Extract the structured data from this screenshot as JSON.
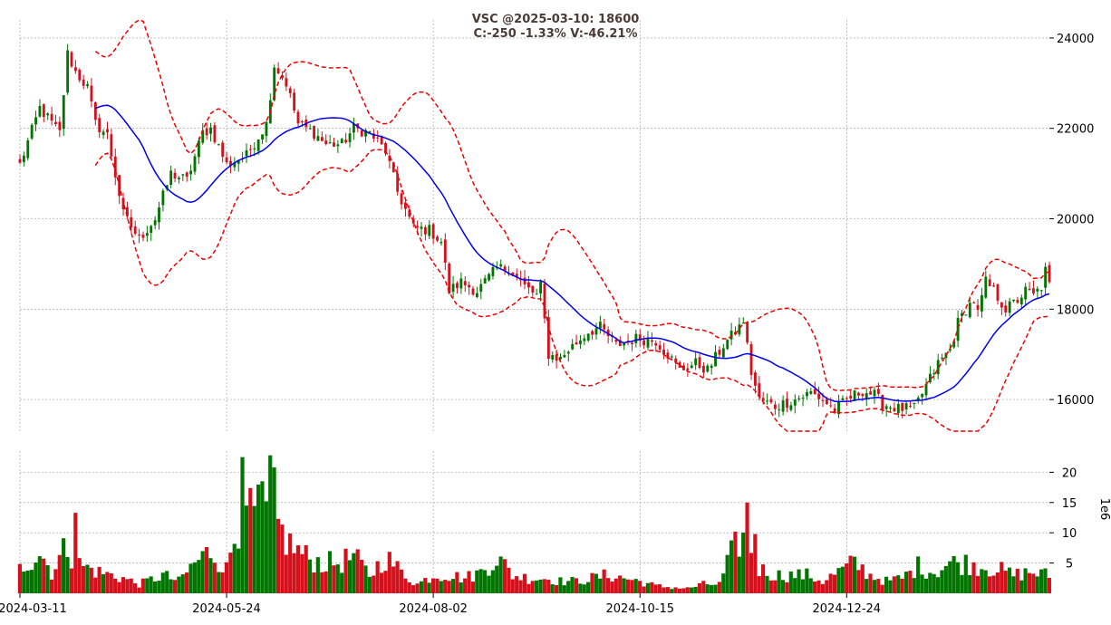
{
  "chart_data": {
    "type": "candlestick",
    "title": {
      "line1": "VSC @2025-03-10: 18600",
      "line2": "C:-250 -1.33% V:-46.21%"
    },
    "colors": {
      "up": "#007500",
      "down": "#d3101c",
      "ma": "#0000ee",
      "band": "#ee0000",
      "grid": "#9a9a9a"
    },
    "grid": true,
    "price_axis": {
      "ylim": [
        15300,
        24400
      ],
      "ticks": [
        16000,
        18000,
        20000,
        22000,
        24000
      ],
      "tick_labels": [
        "16000",
        "18000",
        "20000",
        "22000",
        "24000"
      ],
      "position": "right"
    },
    "volume_axis": {
      "label": "1e6",
      "ylim": [
        0,
        23.5
      ],
      "ticks": [
        5,
        10,
        15,
        20
      ],
      "tick_labels": [
        "5",
        "10",
        "15",
        "20"
      ],
      "position": "right"
    },
    "x_axis": {
      "tick_labels": [
        "2024-03-11",
        "2024-05-24",
        "2024-08-02",
        "2024-10-15",
        "2024-12-24"
      ],
      "tick_index": [
        0,
        52,
        104,
        156,
        208
      ]
    },
    "n_sessions": 260,
    "anchors": [
      [
        0,
        21200
      ],
      [
        5,
        22450
      ],
      [
        10,
        21900
      ],
      [
        12,
        23650
      ],
      [
        14,
        23250
      ],
      [
        17,
        22900
      ],
      [
        19,
        22100
      ],
      [
        22,
        21850
      ],
      [
        26,
        20100
      ],
      [
        30,
        19550
      ],
      [
        34,
        20000
      ],
      [
        38,
        21000
      ],
      [
        42,
        20850
      ],
      [
        46,
        21900
      ],
      [
        48,
        22000
      ],
      [
        52,
        21200
      ],
      [
        57,
        21400
      ],
      [
        62,
        22100
      ],
      [
        64,
        23400
      ],
      [
        67,
        23000
      ],
      [
        70,
        22100
      ],
      [
        74,
        21900
      ],
      [
        77,
        21650
      ],
      [
        81,
        21650
      ],
      [
        84,
        22000
      ],
      [
        88,
        21900
      ],
      [
        92,
        21500
      ],
      [
        95,
        20600
      ],
      [
        99,
        19800
      ],
      [
        103,
        19750
      ],
      [
        106,
        19500
      ],
      [
        108,
        18400
      ],
      [
        111,
        18600
      ],
      [
        115,
        18400
      ],
      [
        117,
        18600
      ],
      [
        120,
        18900
      ],
      [
        123,
        18900
      ],
      [
        127,
        18500
      ],
      [
        130,
        18300
      ],
      [
        131,
        18500
      ],
      [
        133,
        17000
      ],
      [
        136,
        16900
      ],
      [
        138,
        17100
      ],
      [
        143,
        17500
      ],
      [
        146,
        17600
      ],
      [
        150,
        17200
      ],
      [
        155,
        17350
      ],
      [
        160,
        17300
      ],
      [
        163,
        17000
      ],
      [
        166,
        16650
      ],
      [
        170,
        16800
      ],
      [
        173,
        16650
      ],
      [
        177,
        17200
      ],
      [
        181,
        17600
      ],
      [
        182,
        17750
      ],
      [
        184,
        16600
      ],
      [
        186,
        16000
      ],
      [
        190,
        15850
      ],
      [
        195,
        16000
      ],
      [
        199,
        16150
      ],
      [
        202,
        16000
      ],
      [
        205,
        15750
      ],
      [
        208,
        16000
      ],
      [
        210,
        16100
      ],
      [
        212,
        16200
      ],
      [
        215,
        16100
      ],
      [
        217,
        15900
      ],
      [
        221,
        15800
      ],
      [
        225,
        15800
      ],
      [
        228,
        16300
      ],
      [
        231,
        16800
      ],
      [
        234,
        17100
      ],
      [
        236,
        17700
      ],
      [
        238,
        18000
      ],
      [
        240,
        18200
      ],
      [
        241,
        17900
      ],
      [
        243,
        18600
      ],
      [
        245,
        18400
      ],
      [
        248,
        18000
      ],
      [
        251,
        18200
      ],
      [
        253,
        18400
      ],
      [
        255,
        18300
      ],
      [
        257,
        18500
      ],
      [
        258,
        18850
      ],
      [
        259,
        18600
      ]
    ],
    "volume_anchors": [
      [
        0,
        4
      ],
      [
        5,
        7
      ],
      [
        8,
        3.5
      ],
      [
        12,
        8
      ],
      [
        14,
        5
      ],
      [
        20,
        3.5
      ],
      [
        26,
        2.5
      ],
      [
        30,
        1.5
      ],
      [
        36,
        3
      ],
      [
        40,
        2
      ],
      [
        44,
        5
      ],
      [
        48,
        7
      ],
      [
        52,
        4
      ],
      [
        56,
        15
      ],
      [
        60,
        13
      ],
      [
        63,
        19
      ],
      [
        65,
        11
      ],
      [
        68,
        8
      ],
      [
        72,
        6
      ],
      [
        76,
        5
      ],
      [
        80,
        5
      ],
      [
        84,
        6
      ],
      [
        88,
        3
      ],
      [
        92,
        6
      ],
      [
        96,
        3.5
      ],
      [
        100,
        1.5
      ],
      [
        104,
        3
      ],
      [
        108,
        3
      ],
      [
        112,
        2.5
      ],
      [
        116,
        3.5
      ],
      [
        120,
        6
      ],
      [
        124,
        3
      ],
      [
        128,
        2.5
      ],
      [
        132,
        2.5
      ],
      [
        136,
        2
      ],
      [
        140,
        2
      ],
      [
        144,
        2.5
      ],
      [
        148,
        3
      ],
      [
        152,
        2.5
      ],
      [
        156,
        2
      ],
      [
        160,
        1.2
      ],
      [
        164,
        1
      ],
      [
        168,
        0.8
      ],
      [
        172,
        1.5
      ],
      [
        176,
        1.5
      ],
      [
        180,
        8
      ],
      [
        183,
        10
      ],
      [
        186,
        4
      ],
      [
        190,
        3
      ],
      [
        194,
        3
      ],
      [
        198,
        3
      ],
      [
        202,
        2
      ],
      [
        206,
        3.5
      ],
      [
        210,
        5
      ],
      [
        214,
        3
      ],
      [
        218,
        2
      ],
      [
        222,
        2.5
      ],
      [
        226,
        4.5
      ],
      [
        230,
        3.5
      ],
      [
        234,
        5
      ],
      [
        238,
        5
      ],
      [
        242,
        4.5
      ],
      [
        246,
        4
      ],
      [
        250,
        3
      ],
      [
        254,
        3.5
      ],
      [
        259,
        3
      ]
    ],
    "volume_spikes": [
      [
        56,
        22.5
      ],
      [
        57,
        14.5
      ],
      [
        63,
        22.8
      ],
      [
        62,
        15.2
      ],
      [
        14,
        13.3
      ],
      [
        183,
        15.0
      ],
      [
        180,
        10.2
      ],
      [
        185,
        9.8
      ]
    ],
    "ma_period": 20,
    "band_k": 2
  }
}
